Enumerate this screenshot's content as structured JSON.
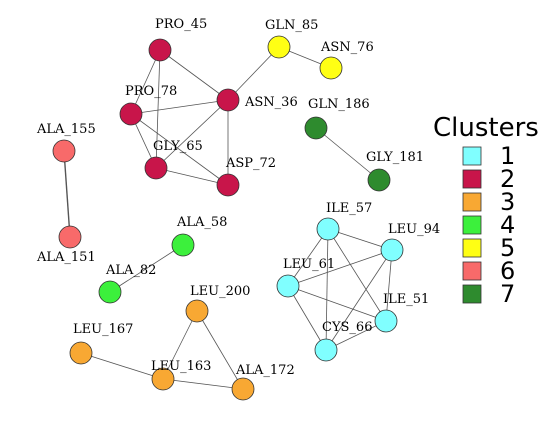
{
  "legend": {
    "title": "Clusters",
    "items": [
      {
        "label": "1",
        "color": "#80FFFF"
      },
      {
        "label": "2",
        "color": "#C8154A"
      },
      {
        "label": "3",
        "color": "#F8A833"
      },
      {
        "label": "4",
        "color": "#3CF03C"
      },
      {
        "label": "5",
        "color": "#FFFF14"
      },
      {
        "label": "6",
        "color": "#F86A6A"
      },
      {
        "label": "7",
        "color": "#2E8B2E"
      }
    ]
  },
  "nodes": [
    {
      "id": "PRO_45",
      "cluster": 2
    },
    {
      "id": "PRO_78",
      "cluster": 2
    },
    {
      "id": "ASN_36",
      "cluster": 2
    },
    {
      "id": "GLY_65",
      "cluster": 2
    },
    {
      "id": "ASP_72",
      "cluster": 2
    },
    {
      "id": "GLN_85",
      "cluster": 5
    },
    {
      "id": "ASN_76",
      "cluster": 5
    },
    {
      "id": "GLN_186",
      "cluster": 7
    },
    {
      "id": "GLY_181",
      "cluster": 7
    },
    {
      "id": "ALA_155",
      "cluster": 6
    },
    {
      "id": "ALA_151",
      "cluster": 6
    },
    {
      "id": "ALA_58",
      "cluster": 4
    },
    {
      "id": "ALA_82",
      "cluster": 4
    },
    {
      "id": "ILE_57",
      "cluster": 1
    },
    {
      "id": "LEU_94",
      "cluster": 1
    },
    {
      "id": "LEU_61",
      "cluster": 1
    },
    {
      "id": "ILE_51",
      "cluster": 1
    },
    {
      "id": "CYS_66",
      "cluster": 1
    },
    {
      "id": "LEU_200",
      "cluster": 3
    },
    {
      "id": "LEU_167",
      "cluster": 3
    },
    {
      "id": "LEU_163",
      "cluster": 3
    },
    {
      "id": "ALA_172",
      "cluster": 3
    }
  ],
  "edges": [
    [
      "PRO_45",
      "PRO_78"
    ],
    [
      "PRO_45",
      "ASN_36"
    ],
    [
      "PRO_45",
      "GLY_65"
    ],
    [
      "PRO_78",
      "ASN_36"
    ],
    [
      "PRO_78",
      "GLY_65"
    ],
    [
      "PRO_78",
      "ASP_72"
    ],
    [
      "ASN_36",
      "GLY_65"
    ],
    [
      "ASN_36",
      "ASP_72"
    ],
    [
      "GLY_65",
      "ASP_72"
    ],
    [
      "ASN_36",
      "GLN_85"
    ],
    [
      "GLN_85",
      "ASN_76"
    ],
    [
      "GLN_186",
      "GLY_181"
    ],
    [
      "ALA_155",
      "ALA_151"
    ],
    [
      "ALA_58",
      "ALA_82"
    ],
    [
      "ILE_57",
      "LEU_94"
    ],
    [
      "ILE_57",
      "LEU_61"
    ],
    [
      "ILE_57",
      "ILE_51"
    ],
    [
      "ILE_57",
      "CYS_66"
    ],
    [
      "LEU_94",
      "LEU_61"
    ],
    [
      "LEU_94",
      "ILE_51"
    ],
    [
      "LEU_94",
      "CYS_66"
    ],
    [
      "LEU_61",
      "ILE_51"
    ],
    [
      "LEU_61",
      "CYS_66"
    ],
    [
      "ILE_51",
      "CYS_66"
    ],
    [
      "LEU_200",
      "LEU_163"
    ],
    [
      "LEU_200",
      "ALA_172"
    ],
    [
      "LEU_167",
      "LEU_163"
    ],
    [
      "LEU_163",
      "ALA_172"
    ]
  ]
}
